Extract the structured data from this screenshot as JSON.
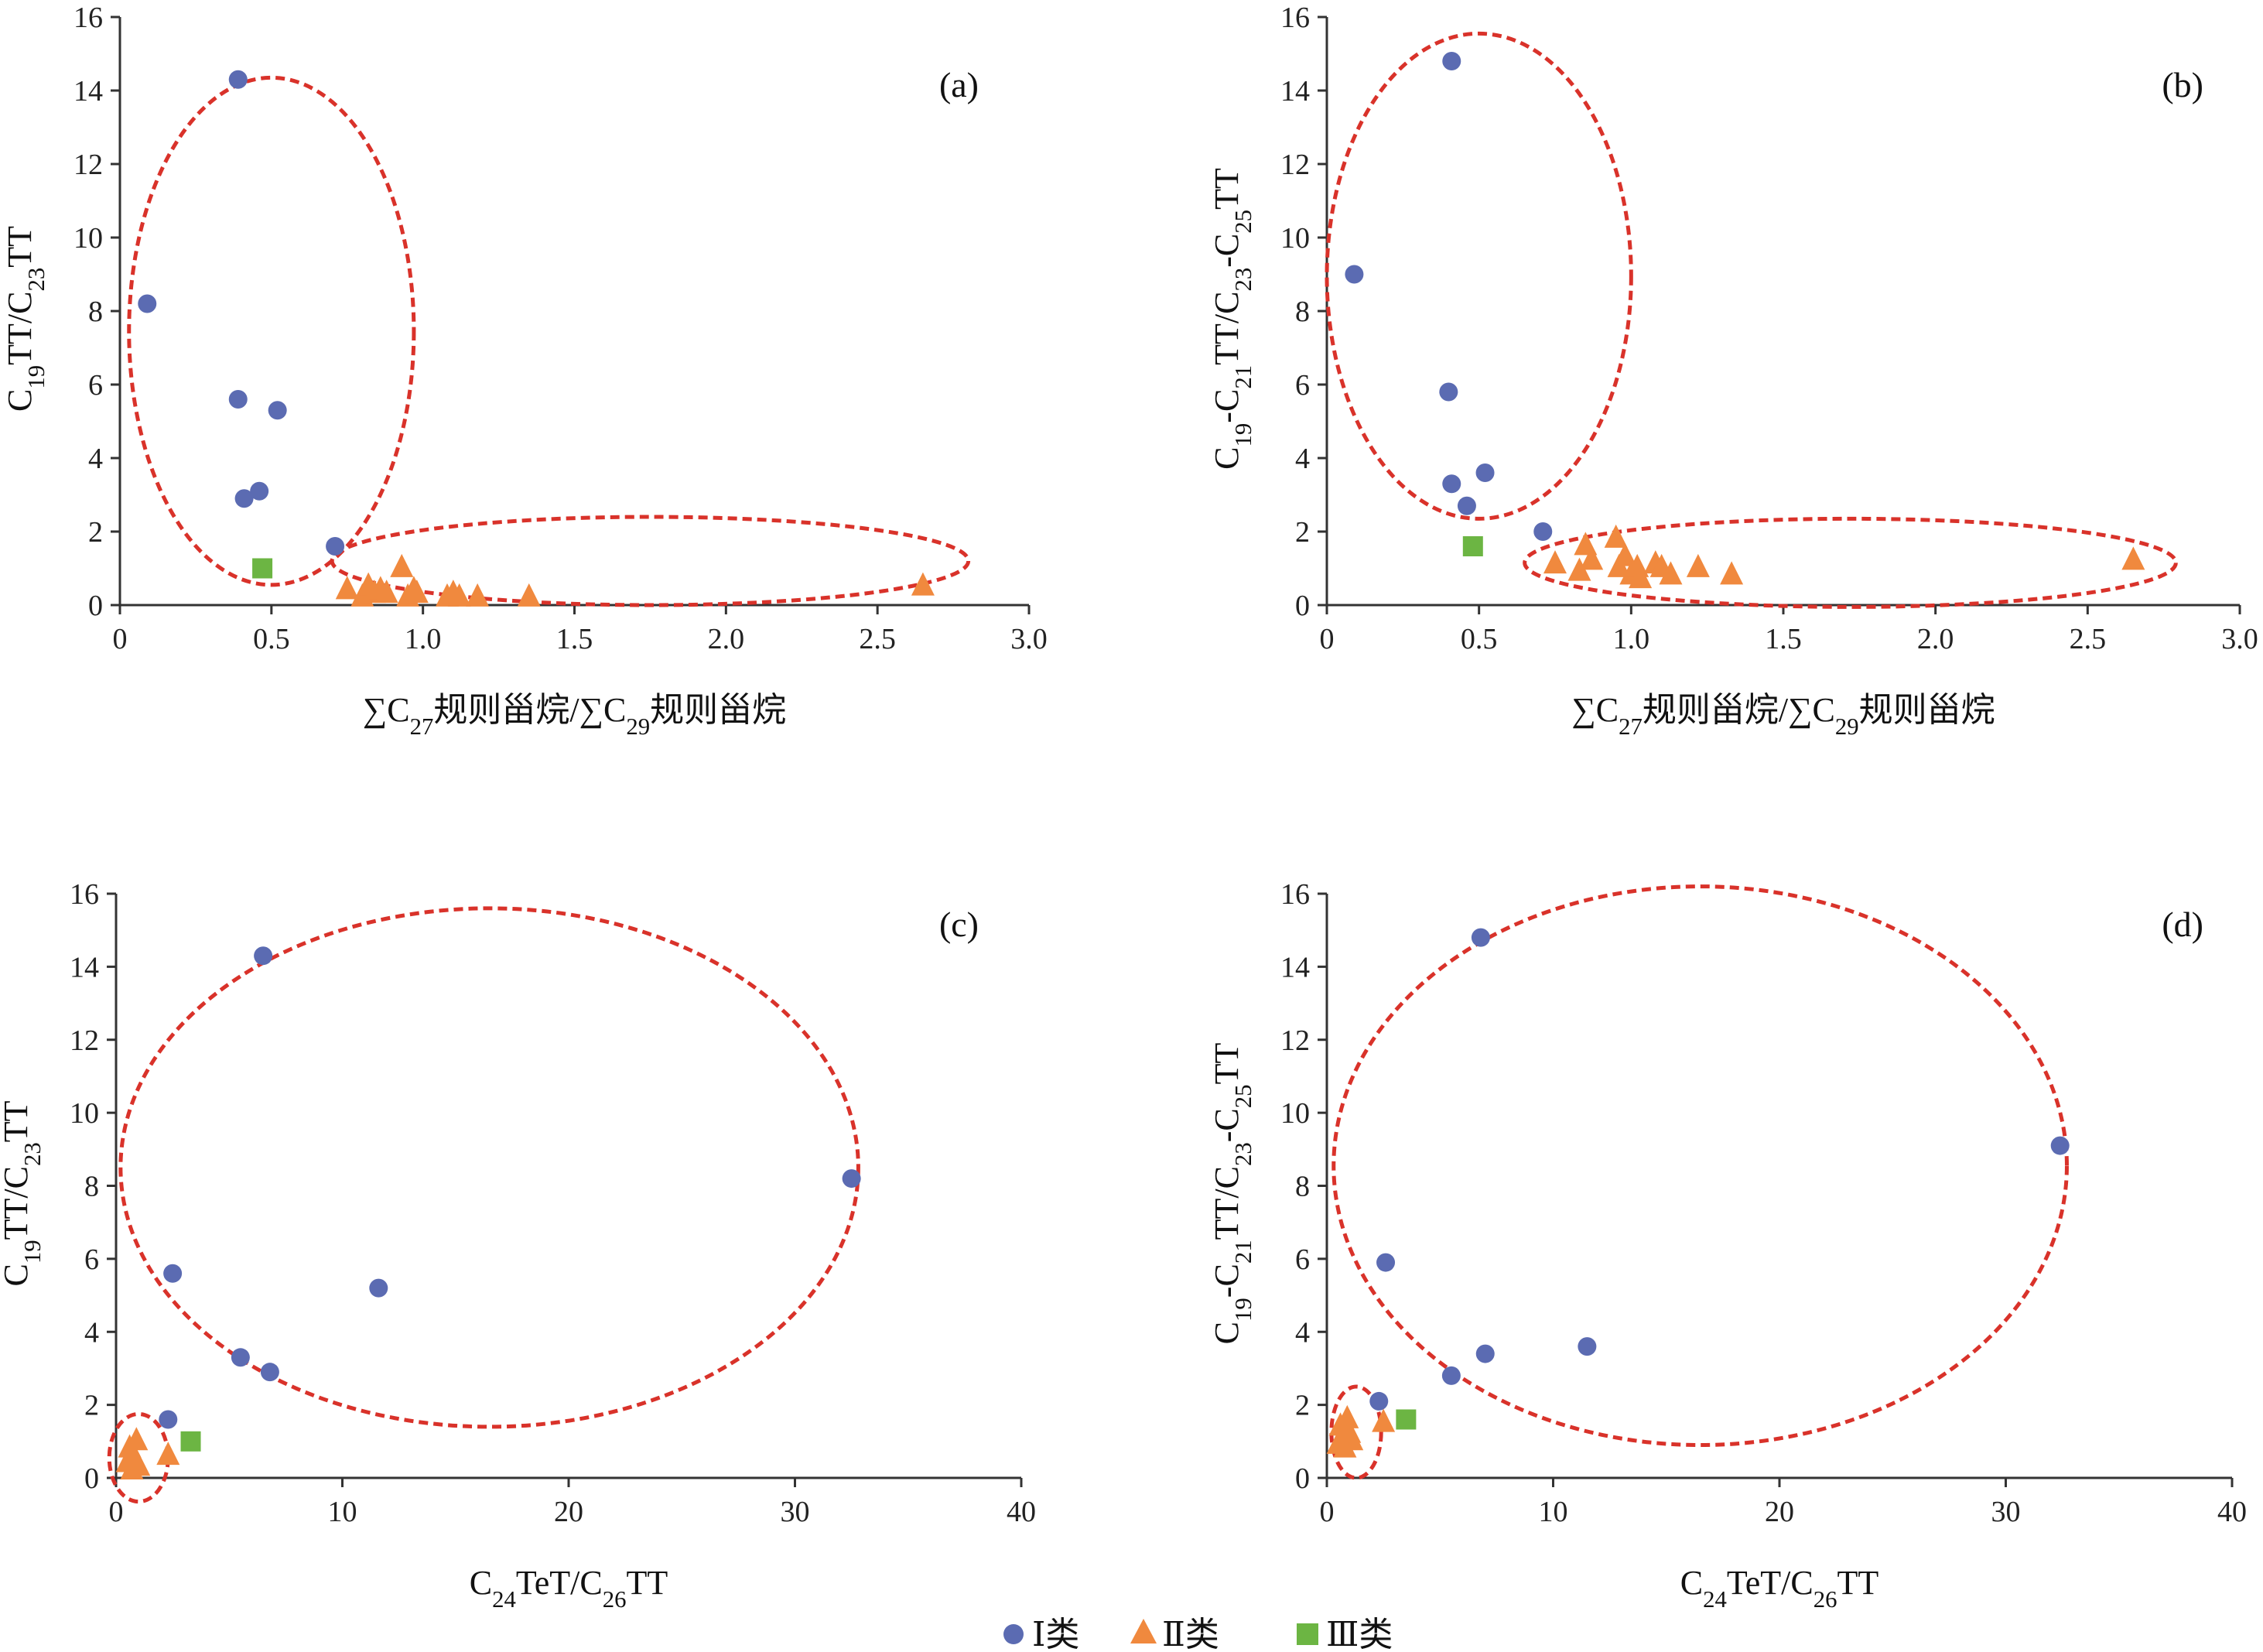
{
  "legend": [
    {
      "label": "Ⅰ类",
      "marker": "circle",
      "color": "#5b6bb2"
    },
    {
      "label": "Ⅱ类",
      "marker": "triangle",
      "color": "#f0893e"
    },
    {
      "label": "Ⅲ类",
      "marker": "square",
      "color": "#6cb543"
    }
  ],
  "colors": {
    "class1": "#5b6bb2",
    "class2": "#f0893e",
    "class3": "#6cb543",
    "ellipse": "#d9322a",
    "axis": "#333333"
  },
  "chart_data": [
    {
      "id": "a",
      "panel_label": "(a)",
      "type": "scatter",
      "xlabel": "∑C27规则甾烷/∑C29规则甾烷",
      "ylabel": "C19TT/C23TT",
      "xlim": [
        0,
        3.0
      ],
      "ylim": [
        0,
        16
      ],
      "xticks": [
        "0",
        "0.5",
        "1.0",
        "1.5",
        "2.0",
        "2.5",
        "3.0"
      ],
      "yticks": [
        "0",
        "2",
        "4",
        "6",
        "8",
        "10",
        "12",
        "14",
        "16"
      ],
      "series": [
        {
          "name": "Ⅰ类",
          "points": [
            [
              0.09,
              8.2
            ],
            [
              0.39,
              14.3
            ],
            [
              0.39,
              5.6
            ],
            [
              0.41,
              2.9
            ],
            [
              0.46,
              3.1
            ],
            [
              0.52,
              5.3
            ],
            [
              0.71,
              1.6
            ]
          ]
        },
        {
          "name": "Ⅱ类",
          "points": [
            [
              0.75,
              0.4
            ],
            [
              0.8,
              0.2
            ],
            [
              0.82,
              0.5
            ],
            [
              0.84,
              0.3
            ],
            [
              0.86,
              0.4
            ],
            [
              0.88,
              0.3
            ],
            [
              0.93,
              1.0
            ],
            [
              0.95,
              0.2
            ],
            [
              0.97,
              0.4
            ],
            [
              0.98,
              0.3
            ],
            [
              1.08,
              0.2
            ],
            [
              1.1,
              0.3
            ],
            [
              1.12,
              0.2
            ],
            [
              1.18,
              0.2
            ],
            [
              1.35,
              0.2
            ],
            [
              2.65,
              0.5
            ]
          ]
        },
        {
          "name": "Ⅲ类",
          "points": [
            [
              0.47,
              1.0
            ]
          ]
        }
      ],
      "ellipses": [
        {
          "cx": 0.5,
          "cy": 7.45,
          "rx": 0.47,
          "ry": 6.9
        },
        {
          "cx": 1.75,
          "cy": 1.2,
          "rx": 1.05,
          "ry": 1.2
        }
      ]
    },
    {
      "id": "b",
      "panel_label": "(b)",
      "type": "scatter",
      "xlabel": "∑C27规则甾烷/∑C29规则甾烷",
      "ylabel": "C19-C21TT/C23-C25TT",
      "xlim": [
        0,
        3.0
      ],
      "ylim": [
        0,
        16
      ],
      "xticks": [
        "0",
        "0.5",
        "1.0",
        "1.5",
        "2.0",
        "2.5",
        "3.0"
      ],
      "yticks": [
        "0",
        "2",
        "4",
        "6",
        "8",
        "10",
        "12",
        "14",
        "16"
      ],
      "series": [
        {
          "name": "Ⅰ类",
          "points": [
            [
              0.09,
              9.0
            ],
            [
              0.41,
              14.8
            ],
            [
              0.4,
              5.8
            ],
            [
              0.41,
              3.3
            ],
            [
              0.46,
              2.7
            ],
            [
              0.52,
              3.6
            ],
            [
              0.71,
              2.0
            ]
          ]
        },
        {
          "name": "Ⅱ类",
          "points": [
            [
              0.75,
              1.1
            ],
            [
              0.83,
              0.9
            ],
            [
              0.85,
              1.6
            ],
            [
              0.87,
              1.2
            ],
            [
              0.95,
              1.8
            ],
            [
              0.96,
              1.0
            ],
            [
              0.98,
              1.3
            ],
            [
              1.0,
              0.8
            ],
            [
              1.02,
              1.0
            ],
            [
              1.03,
              0.7
            ],
            [
              1.08,
              1.1
            ],
            [
              1.1,
              1.0
            ],
            [
              1.13,
              0.8
            ],
            [
              1.22,
              1.0
            ],
            [
              1.33,
              0.8
            ],
            [
              2.65,
              1.2
            ]
          ]
        },
        {
          "name": "Ⅲ类",
          "points": [
            [
              0.48,
              1.6
            ]
          ]
        }
      ],
      "ellipses": [
        {
          "cx": 0.5,
          "cy": 8.95,
          "rx": 0.5,
          "ry": 6.6
        },
        {
          "cx": 1.72,
          "cy": 1.15,
          "rx": 1.07,
          "ry": 1.2
        }
      ]
    },
    {
      "id": "c",
      "panel_label": "(c)",
      "type": "scatter",
      "xlabel": "C24TeT/C26TT",
      "ylabel": "C19TT/C23TT",
      "xlim": [
        0,
        40
      ],
      "ylim": [
        0,
        16
      ],
      "xticks": [
        "0",
        "10",
        "20",
        "30",
        "40"
      ],
      "yticks": [
        "0",
        "2",
        "4",
        "6",
        "8",
        "10",
        "12",
        "14",
        "16"
      ],
      "series": [
        {
          "name": "Ⅰ类",
          "points": [
            [
              2.3,
              1.6
            ],
            [
              2.5,
              5.6
            ],
            [
              5.5,
              3.3
            ],
            [
              6.5,
              14.3
            ],
            [
              6.8,
              2.9
            ],
            [
              11.6,
              5.2
            ],
            [
              32.5,
              8.2
            ]
          ]
        },
        {
          "name": "Ⅱ类",
          "points": [
            [
              0.5,
              0.4
            ],
            [
              0.6,
              0.8
            ],
            [
              0.7,
              0.2
            ],
            [
              0.8,
              0.5
            ],
            [
              0.9,
              1.0
            ],
            [
              1.0,
              0.3
            ],
            [
              2.3,
              0.6
            ]
          ]
        },
        {
          "name": "Ⅲ类",
          "points": [
            [
              3.3,
              1.0
            ]
          ]
        }
      ],
      "ellipses": [
        {
          "cx": 16.5,
          "cy": 8.5,
          "rx": 16.3,
          "ry": 7.1
        },
        {
          "cx": 1.0,
          "cy": 0.55,
          "rx": 1.3,
          "ry": 1.2
        }
      ]
    },
    {
      "id": "d",
      "panel_label": "(d)",
      "type": "scatter",
      "xlabel": "C24TeT/C26TT",
      "ylabel": "C19-C21TT/C23-C25TT",
      "xlim": [
        0,
        40
      ],
      "ylim": [
        0,
        16
      ],
      "xticks": [
        "0",
        "10",
        "20",
        "30",
        "40"
      ],
      "yticks": [
        "0",
        "2",
        "4",
        "6",
        "8",
        "10",
        "12",
        "14",
        "16"
      ],
      "series": [
        {
          "name": "Ⅰ类",
          "points": [
            [
              2.3,
              2.1
            ],
            [
              2.6,
              5.9
            ],
            [
              5.5,
              2.8
            ],
            [
              6.8,
              14.8
            ],
            [
              7.0,
              3.4
            ],
            [
              11.5,
              3.6
            ],
            [
              32.4,
              9.1
            ]
          ]
        },
        {
          "name": "Ⅱ类",
          "points": [
            [
              0.5,
              0.9
            ],
            [
              0.6,
              1.4
            ],
            [
              0.7,
              1.1
            ],
            [
              0.8,
              0.8
            ],
            [
              0.9,
              1.6
            ],
            [
              1.0,
              1.2
            ],
            [
              1.1,
              1.0
            ],
            [
              2.5,
              1.5
            ]
          ]
        },
        {
          "name": "Ⅲ类",
          "points": [
            [
              3.5,
              1.6
            ]
          ]
        }
      ],
      "ellipses": [
        {
          "cx": 16.5,
          "cy": 8.55,
          "rx": 16.2,
          "ry": 7.65
        },
        {
          "cx": 1.3,
          "cy": 1.25,
          "rx": 1.1,
          "ry": 1.25
        }
      ]
    }
  ]
}
